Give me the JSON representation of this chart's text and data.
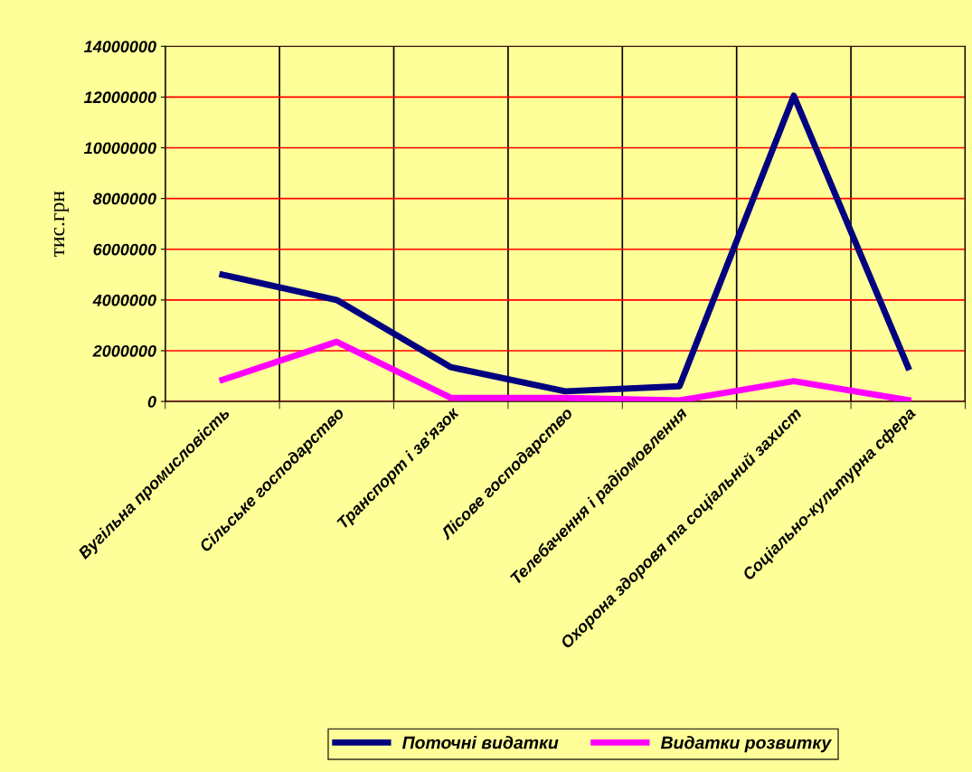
{
  "chart_data": {
    "type": "line",
    "ylabel": "тис.грн",
    "categories": [
      "Вугільна промисловість",
      "Сільське господарство",
      "Транспорт і зв'язок",
      "Лісове господарство",
      "Телебачення і радіомовлення",
      "Охорона здоровя та соціальний захист",
      "Соціально-культурна сфера"
    ],
    "series": [
      {
        "name": "Поточні видатки",
        "color": "#000080",
        "values": [
          5000000,
          4000000,
          1350000,
          400000,
          600000,
          12050000,
          1350000
        ]
      },
      {
        "name": "Видатки розвитку",
        "color": "#ff00ff",
        "values": [
          850000,
          2350000,
          140000,
          140000,
          40000,
          800000,
          50000
        ]
      }
    ],
    "ylim": [
      0,
      14000000
    ],
    "yticks": [
      0,
      2000000,
      4000000,
      6000000,
      8000000,
      10000000,
      12000000,
      14000000
    ],
    "grid": true,
    "legend": "bottom",
    "marker": "none",
    "line_style": "solid"
  }
}
